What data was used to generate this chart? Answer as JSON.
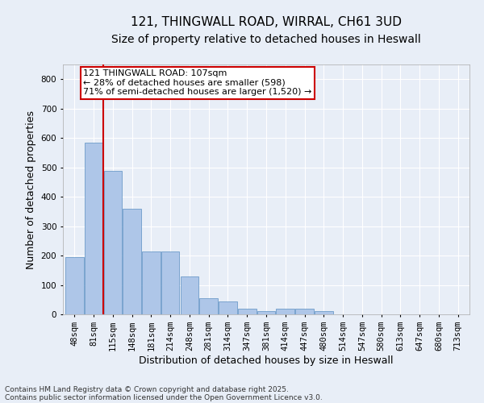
{
  "title_line1": "121, THINGWALL ROAD, WIRRAL, CH61 3UD",
  "title_line2": "Size of property relative to detached houses in Heswall",
  "xlabel": "Distribution of detached houses by size in Heswall",
  "ylabel": "Number of detached properties",
  "categories": [
    "48sqm",
    "81sqm",
    "115sqm",
    "148sqm",
    "181sqm",
    "214sqm",
    "248sqm",
    "281sqm",
    "314sqm",
    "347sqm",
    "381sqm",
    "414sqm",
    "447sqm",
    "480sqm",
    "514sqm",
    "547sqm",
    "580sqm",
    "613sqm",
    "647sqm",
    "680sqm",
    "713sqm"
  ],
  "values": [
    195,
    585,
    488,
    360,
    215,
    215,
    130,
    55,
    45,
    20,
    10,
    20,
    20,
    10,
    0,
    0,
    0,
    0,
    0,
    0,
    0
  ],
  "bar_color": "#aec6e8",
  "bar_edge_color": "#5a8fc2",
  "property_line_color": "#cc0000",
  "annotation_text": "121 THINGWALL ROAD: 107sqm\n← 28% of detached houses are smaller (598)\n71% of semi-detached houses are larger (1,520) →",
  "annotation_box_color": "#ffffff",
  "annotation_box_edge_color": "#cc0000",
  "footnote1": "Contains HM Land Registry data © Crown copyright and database right 2025.",
  "footnote2": "Contains public sector information licensed under the Open Government Licence v3.0.",
  "ylim": [
    0,
    850
  ],
  "yticks": [
    0,
    100,
    200,
    300,
    400,
    500,
    600,
    700,
    800
  ],
  "background_color": "#e8eef7",
  "grid_color": "#ffffff",
  "title_fontsize": 11,
  "subtitle_fontsize": 10,
  "axis_label_fontsize": 9,
  "tick_fontsize": 7.5,
  "annotation_fontsize": 8,
  "footnote_fontsize": 6.5
}
